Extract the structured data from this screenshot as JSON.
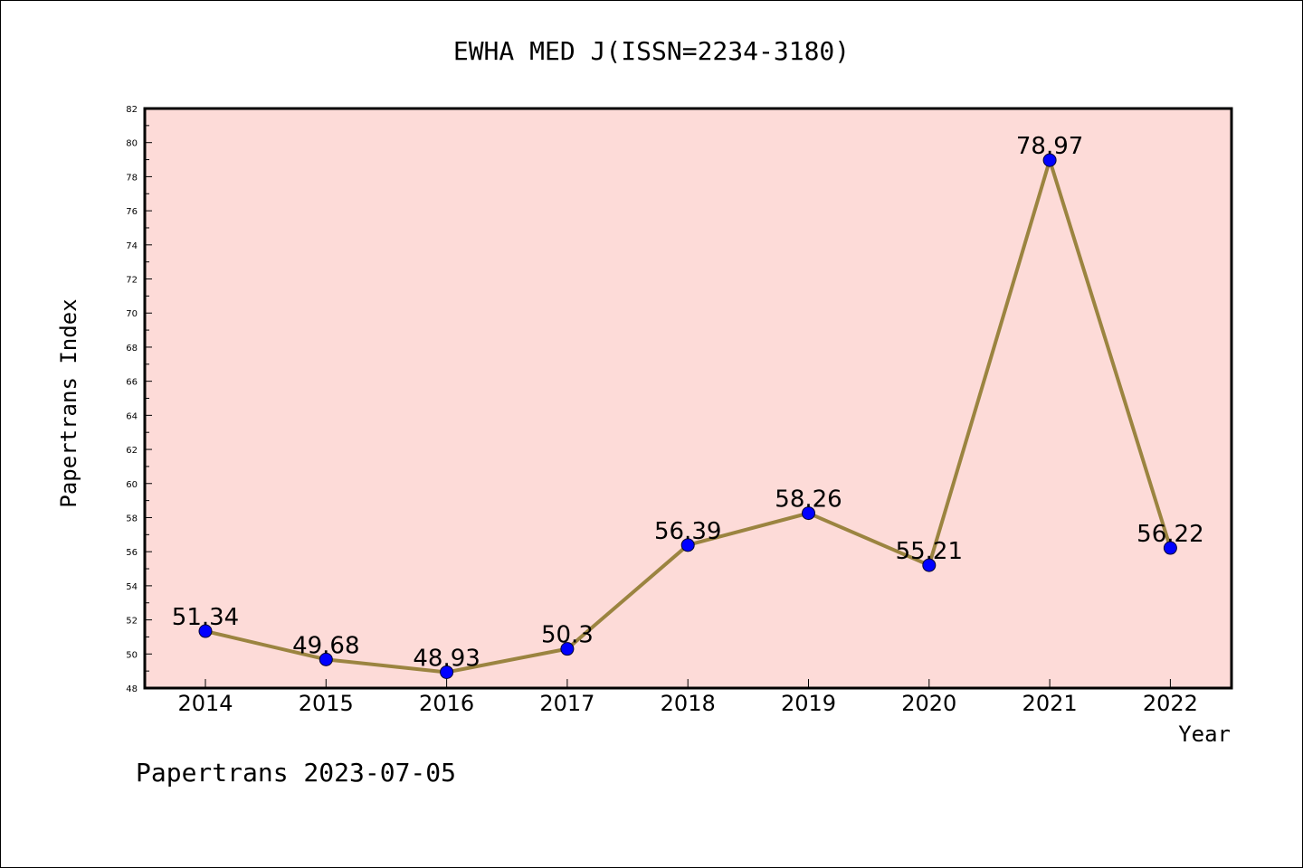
{
  "chart_data": {
    "type": "line",
    "title": "EWHA MED J(ISSN=2234-3180)",
    "xlabel": "Year",
    "ylabel": "Papertrans Index",
    "categories": [
      "2014",
      "2015",
      "2016",
      "2017",
      "2018",
      "2019",
      "2020",
      "2021",
      "2022"
    ],
    "series": [
      {
        "values": [
          51.34,
          49.68,
          48.93,
          50.3,
          56.39,
          58.26,
          55.21,
          78.97,
          56.22
        ],
        "labels": [
          "51.34",
          "49.68",
          "48.93",
          "50.3",
          "56.39",
          "58.26",
          "55.21",
          "78.97",
          "56.22"
        ]
      }
    ],
    "ylim": [
      48,
      82
    ],
    "yticks": [
      "48",
      "50",
      "52",
      "54",
      "56",
      "58",
      "60",
      "62",
      "64",
      "66",
      "68",
      "70",
      "72",
      "74",
      "76",
      "78",
      "80",
      "82"
    ],
    "grid": false,
    "legend": "none"
  },
  "footer": "Papertrans 2023-07-05",
  "colors": {
    "plot_background": "#fddbd8",
    "line": "#9b8440",
    "marker": "#0000ff",
    "axis": "#000000"
  }
}
